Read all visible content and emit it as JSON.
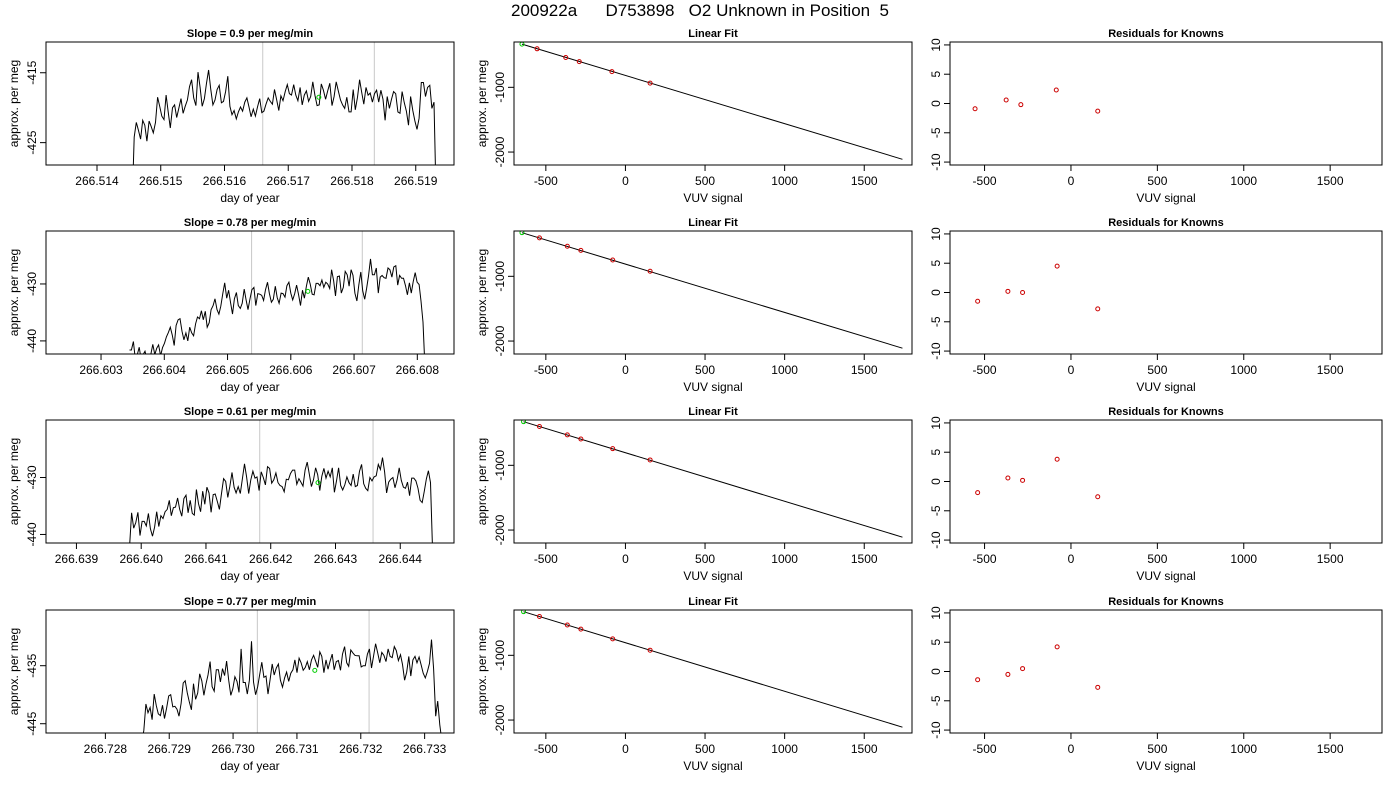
{
  "page_title": "200922a      D753898   O2 Unknown in Position  5",
  "chart_data": [
    {
      "type": "line",
      "panel": "timeseries",
      "title": "Slope =  0.9  per meg/min",
      "xlabel": "day of year",
      "ylabel": "approx. per meg",
      "xlim": [
        266.5132,
        266.5196
      ],
      "ylim": [
        -428.2,
        -410.6
      ],
      "xticks": [
        "266.514",
        "266.515",
        "266.516",
        "266.517",
        "266.518",
        "266.519"
      ],
      "yticks": [
        "-415",
        "-425"
      ],
      "vlines": [
        266.5166,
        266.51835
      ],
      "grid": false,
      "x_start": 266.51455,
      "x_end": 266.51932,
      "values": [
        -434.0,
        -424.2,
        -422.1,
        -423.2,
        -424.5,
        -421.8,
        -422.5,
        -424.8,
        -421.9,
        -422.7,
        -423.6,
        -422.1,
        -418.5,
        -419.8,
        -421.2,
        -421.7,
        -418.2,
        -420.6,
        -422.9,
        -420.0,
        -419.6,
        -421.4,
        -420.1,
        -418.7,
        -420.8,
        -419.8,
        -418.9,
        -417.0,
        -416.0,
        -418.6,
        -419.7,
        -414.9,
        -417.1,
        -419.8,
        -418.7,
        -416.5,
        -414.6,
        -417.3,
        -419.6,
        -418.9,
        -417.4,
        -416.8,
        -419.3,
        -419.1,
        -417.7,
        -415.5,
        -419.8,
        -421.0,
        -420.4,
        -421.6,
        -420.6,
        -419.9,
        -420.5,
        -419.2,
        -418.6,
        -419.9,
        -421.3,
        -420.2,
        -421.2,
        -419.9,
        -418.7,
        -420.7,
        -420.5,
        -419.5,
        -418.6,
        -419.1,
        -419.5,
        -417.4,
        -418.9,
        -420.4,
        -418.3,
        -419.0,
        -417.7,
        -416.7,
        -418.0,
        -418.2,
        -416.7,
        -418.2,
        -419.0,
        -417.1,
        -419.6,
        -418.2,
        -417.6,
        -419.1,
        -418.4,
        -416.3,
        -418.2,
        -419.7,
        -419.6,
        -416.6,
        -417.5,
        -418.8,
        -417.6,
        -416.5,
        -419.7,
        -418.4,
        -416.3,
        -417.6,
        -418.9,
        -419.6,
        -420.1,
        -418.5,
        -420.6,
        -420.6,
        -417.4,
        -420.3,
        -418.5,
        -416.0,
        -417.8,
        -419.5,
        -417.1,
        -418.2,
        -417.9,
        -419.2,
        -418.0,
        -417.5,
        -419.2,
        -417.5,
        -418.8,
        -421.8,
        -418.4,
        -420.1,
        -418.8,
        -417.7,
        -418.0,
        -420.6,
        -420.8,
        -417.7,
        -419.3,
        -420.5,
        -422.5,
        -418.4,
        -420.4,
        -421.9,
        -423.1,
        -421.5,
        -416.4,
        -416.4,
        -418.4,
        -417.1,
        -416.8,
        -420.1,
        -419.2,
        -433.0
      ],
      "marker": {
        "x": 266.51748,
        "y": -418.5,
        "color": "#00cc00"
      }
    },
    {
      "type": "scatter",
      "panel": "linear-fit",
      "title": "Linear Fit",
      "xlabel": "VUV signal",
      "ylabel": "approx. per meg",
      "xlim": [
        -700,
        1800
      ],
      "ylim": [
        -2200,
        -300
      ],
      "xticks": [
        "-500",
        "0",
        "500",
        "1000",
        "1500"
      ],
      "yticks": [
        "-1000",
        "-2000"
      ],
      "fit_line": {
        "x": [
          -650,
          1740
        ],
        "y": [
          -333,
          -2112
        ]
      },
      "knowns": {
        "x": [
          -555,
          -375,
          -290,
          -85,
          155
        ],
        "y": [
          -405,
          -540,
          -603,
          -757,
          -935
        ]
      },
      "unknown": {
        "x": [
          -650
        ],
        "y": [
          -333
        ]
      },
      "colors": {
        "knowns": "#cc0000",
        "unknown": "#00cc00"
      }
    },
    {
      "type": "scatter",
      "panel": "residuals",
      "title": "Residuals for Knowns",
      "xlabel": "VUV signal",
      "ylabel": "",
      "xlim": [
        -700,
        1800
      ],
      "ylim": [
        -10.5,
        10.5
      ],
      "xticks": [
        "-500",
        "0",
        "500",
        "1000",
        "1500"
      ],
      "yticks": [
        "-10",
        "-5",
        "0",
        "5",
        "10"
      ],
      "x": [
        -555,
        -375,
        -290,
        -85,
        155
      ],
      "y": [
        -0.9,
        0.6,
        -0.2,
        2.3,
        -1.3
      ]
    },
    {
      "type": "line",
      "panel": "timeseries",
      "title": "Slope =  0.78  per meg/min",
      "xlabel": "day of year",
      "ylabel": "approx. per meg",
      "xlim": [
        266.60213,
        266.60858
      ],
      "ylim": [
        -442.3,
        -420.7
      ],
      "xticks": [
        "266.603",
        "266.604",
        "266.605",
        "266.606",
        "266.607",
        "266.608"
      ],
      "yticks": [
        "-430",
        "-440"
      ],
      "vlines": [
        266.60538,
        266.60713
      ],
      "grid": false,
      "x_start": 266.60345,
      "x_end": 266.60812,
      "values": [
        -441.6,
        -441.6,
        -440.1,
        -443.2,
        -442.4,
        -441.1,
        -443.3,
        -442.4,
        -441.8,
        -443.2,
        -442.6,
        -442.3,
        -440.6,
        -442.4,
        -441.3,
        -440.7,
        -442.6,
        -441.2,
        -440.4,
        -439.3,
        -438.5,
        -437.6,
        -439.0,
        -440.8,
        -437.3,
        -436.3,
        -436.1,
        -438.3,
        -439.8,
        -438.6,
        -440.0,
        -437.6,
        -438.6,
        -439.1,
        -437.0,
        -435.8,
        -436.1,
        -434.7,
        -436.3,
        -434.8,
        -437.6,
        -436.8,
        -434.5,
        -433.8,
        -432.6,
        -434.5,
        -435.3,
        -433.9,
        -431.7,
        -429.8,
        -432.5,
        -431.1,
        -433.3,
        -435.3,
        -432.6,
        -431.5,
        -433.8,
        -434.3,
        -433.4,
        -430.9,
        -432.8,
        -434.5,
        -432.6,
        -431.0,
        -430.6,
        -433.8,
        -431.7,
        -431.8,
        -432.0,
        -432.9,
        -431.0,
        -429.7,
        -431.7,
        -433.2,
        -432.7,
        -430.4,
        -432.4,
        -433.4,
        -431.6,
        -431.7,
        -432.3,
        -430.3,
        -429.7,
        -431.6,
        -432.8,
        -431.7,
        -430.2,
        -431.9,
        -433.8,
        -431.1,
        -432.5,
        -430.4,
        -428.8,
        -430.0,
        -431.8,
        -431.9,
        -429.9,
        -429.9,
        -430.3,
        -429.3,
        -430.6,
        -429.7,
        -430.0,
        -430.8,
        -427.5,
        -429.4,
        -432.1,
        -428.7,
        -428.6,
        -431.6,
        -430.6,
        -427.8,
        -428.4,
        -430.4,
        -427.5,
        -428.5,
        -431.6,
        -433.0,
        -430.2,
        -427.9,
        -431.2,
        -432.7,
        -430.8,
        -428.6,
        -425.6,
        -428.4,
        -428.4,
        -427.2,
        -431.6,
        -428.8,
        -428.5,
        -428.9,
        -429.0,
        -427.2,
        -427.5,
        -428.8,
        -427.0,
        -426.8,
        -430.2,
        -428.5,
        -429.0,
        -429.0,
        -430.3,
        -431.9,
        -429.8,
        -431.6,
        -429.6,
        -428.0,
        -429.7,
        -430.1,
        -433.0,
        -436.7,
        -444.5
      ],
      "marker": {
        "x": 266.60627,
        "y": -431.3,
        "color": "#00cc00"
      }
    },
    {
      "type": "scatter",
      "panel": "linear-fit",
      "title": "Linear Fit",
      "xlabel": "VUV signal",
      "ylabel": "approx. per meg",
      "xlim": [
        -700,
        1800
      ],
      "ylim": [
        -2200,
        -300
      ],
      "xticks": [
        "-500",
        "0",
        "500",
        "1000",
        "1500"
      ],
      "yticks": [
        "-1000",
        "-2000"
      ],
      "fit_line": {
        "x": [
          -650,
          1740
        ],
        "y": [
          -326,
          -2110
        ]
      },
      "knowns": {
        "x": [
          -540,
          -365,
          -280,
          -80,
          155
        ],
        "y": [
          -406,
          -535,
          -599,
          -748,
          -922
        ]
      },
      "unknown": {
        "x": [
          -650
        ],
        "y": [
          -326
        ]
      },
      "colors": {
        "knowns": "#cc0000",
        "unknown": "#00cc00"
      }
    },
    {
      "type": "scatter",
      "panel": "residuals",
      "title": "Residuals for Knowns",
      "xlabel": "VUV signal",
      "ylabel": "",
      "xlim": [
        -700,
        1800
      ],
      "ylim": [
        -10.5,
        10.5
      ],
      "xticks": [
        "-500",
        "0",
        "500",
        "1000",
        "1500"
      ],
      "yticks": [
        "-10",
        "-5",
        "0",
        "5",
        "10"
      ],
      "x": [
        -540,
        -365,
        -280,
        -80,
        155
      ],
      "y": [
        -1.5,
        0.2,
        0.0,
        4.5,
        -2.8
      ]
    },
    {
      "type": "line",
      "panel": "timeseries",
      "title": "Slope =  0.61  per meg/min",
      "xlabel": "day of year",
      "ylabel": "approx. per meg",
      "xlim": [
        266.63853,
        266.64483
      ],
      "ylim": [
        -441.5,
        -419.9
      ],
      "xticks": [
        "266.639",
        "266.640",
        "266.641",
        "266.642",
        "266.643",
        "266.644"
      ],
      "yticks": [
        "-430",
        "-440"
      ],
      "vlines": [
        266.64183,
        266.64358
      ],
      "grid": false,
      "x_start": 266.63982,
      "x_end": 266.6445,
      "values": [
        -442.3,
        -436.2,
        -438.9,
        -437.9,
        -436.1,
        -440.2,
        -437.7,
        -437.7,
        -438.5,
        -436.3,
        -439.0,
        -440.3,
        -438.7,
        -436.0,
        -438.6,
        -436.7,
        -437.2,
        -436.0,
        -435.6,
        -434.0,
        -436.7,
        -435.3,
        -435.2,
        -433.6,
        -435.6,
        -436.8,
        -433.7,
        -433.1,
        -436.2,
        -434.0,
        -436.3,
        -436.6,
        -432.1,
        -434.6,
        -436.0,
        -432.4,
        -434.7,
        -431.7,
        -432.7,
        -436.1,
        -433.0,
        -432.9,
        -434.2,
        -435.6,
        -432.8,
        -430.2,
        -430.7,
        -433.5,
        -431.5,
        -429.1,
        -431.7,
        -432.7,
        -431.6,
        -432.8,
        -430.2,
        -427.6,
        -429.9,
        -432.8,
        -430.4,
        -428.9,
        -430.1,
        -429.9,
        -432.3,
        -429.0,
        -430.0,
        -431.3,
        -428.1,
        -428.4,
        -431.0,
        -430.4,
        -429.2,
        -430.9,
        -431.4,
        -431.6,
        -432.5,
        -430.3,
        -430.4,
        -429.3,
        -428.7,
        -428.7,
        -431.2,
        -430.2,
        -430.8,
        -431.5,
        -428.7,
        -427.3,
        -429.4,
        -431.6,
        -430.4,
        -428.3,
        -429.5,
        -432.3,
        -429.8,
        -428.4,
        -430.1,
        -428.9,
        -429.9,
        -428.3,
        -432.6,
        -430.6,
        -428.3,
        -431.4,
        -432.2,
        -431.3,
        -429.9,
        -430.9,
        -431.4,
        -429.4,
        -431.6,
        -431.4,
        -428.9,
        -427.7,
        -431.1,
        -431.9,
        -432.3,
        -430.0,
        -430.6,
        -429.9,
        -429.7,
        -427.7,
        -428.6,
        -426.5,
        -429.0,
        -432.7,
        -430.8,
        -430.3,
        -430.0,
        -431.8,
        -430.4,
        -428.3,
        -430.5,
        -431.7,
        -431.9,
        -430.8,
        -433.2,
        -430.1,
        -430.1,
        -430.6,
        -431.9,
        -434.0,
        -434.4,
        -432.4,
        -430.2,
        -428.8,
        -430.9,
        -443.0
      ],
      "marker": {
        "x": 266.64273,
        "y": -430.9,
        "color": "#00cc00"
      }
    },
    {
      "type": "scatter",
      "panel": "linear-fit",
      "title": "Linear Fit",
      "xlabel": "VUV signal",
      "ylabel": "approx. per meg",
      "xlim": [
        -700,
        1800
      ],
      "ylim": [
        -2200,
        -300
      ],
      "xticks": [
        "-500",
        "0",
        "500",
        "1000",
        "1500"
      ],
      "yticks": [
        "-1000",
        "-2000"
      ],
      "fit_line": {
        "x": [
          -640,
          1740
        ],
        "y": [
          -326,
          -2110
        ]
      },
      "knowns": {
        "x": [
          -540,
          -365,
          -280,
          -80,
          155
        ],
        "y": [
          -401,
          -530,
          -593,
          -743,
          -917
        ]
      },
      "unknown": {
        "x": [
          -640
        ],
        "y": [
          -326
        ]
      },
      "colors": {
        "knowns": "#cc0000",
        "unknown": "#00cc00"
      }
    },
    {
      "type": "scatter",
      "panel": "residuals",
      "title": "Residuals for Knowns",
      "xlabel": "VUV signal",
      "ylabel": "",
      "xlim": [
        -700,
        1800
      ],
      "ylim": [
        -10.5,
        10.5
      ],
      "xticks": [
        "-500",
        "0",
        "500",
        "1000",
        "1500"
      ],
      "yticks": [
        "-10",
        "-5",
        "0",
        "5",
        "10"
      ],
      "x": [
        -540,
        -365,
        -280,
        -80,
        155
      ],
      "y": [
        -1.9,
        0.6,
        0.2,
        3.8,
        -2.6
      ]
    },
    {
      "type": "line",
      "panel": "timeseries",
      "title": "Slope =  0.77  per meg/min",
      "xlabel": "day of year",
      "ylabel": "approx. per meg",
      "xlim": [
        266.72707,
        266.73346
      ],
      "ylim": [
        -446.6,
        -425.4
      ],
      "xticks": [
        "266.728",
        "266.729",
        "266.730",
        "266.731",
        "266.732",
        "266.733"
      ],
      "yticks": [
        "-435",
        "-445"
      ],
      "vlines": [
        266.73038,
        266.73213
      ],
      "grid": false,
      "x_start": 266.72857,
      "x_end": 266.73327,
      "values": [
        -448.0,
        -446.2,
        -441.6,
        -443.1,
        -442.2,
        -444.3,
        -439.9,
        -441.9,
        -443.3,
        -443.6,
        -441.8,
        -444.1,
        -442.3,
        -440.2,
        -440.0,
        -442.1,
        -442.0,
        -442.5,
        -443.7,
        -441.5,
        -438.0,
        -437.6,
        -439.7,
        -441.3,
        -442.6,
        -438.1,
        -440.8,
        -439.7,
        -436.4,
        -437.6,
        -440.1,
        -438.2,
        -436.6,
        -434.3,
        -438.6,
        -439.4,
        -435.7,
        -435.7,
        -437.8,
        -435.5,
        -436.7,
        -434.2,
        -437.5,
        -440.1,
        -439.0,
        -436.9,
        -437.7,
        -439.6,
        -432.1,
        -437.9,
        -437.9,
        -439.9,
        -437.5,
        -430.8,
        -437.8,
        -440.0,
        -438.6,
        -436.5,
        -434.4,
        -437.0,
        -436.8,
        -439.9,
        -437.4,
        -434.7,
        -436.6,
        -435.4,
        -434.7,
        -437.5,
        -438.7,
        -437.1,
        -436.1,
        -437.7,
        -436.3,
        -435.7,
        -434.0,
        -436.2,
        -433.7,
        -434.5,
        -435.8,
        -435.3,
        -434.3,
        -435.7,
        -434.0,
        -433.2,
        -434.2,
        -435.3,
        -432.6,
        -433.4,
        -436.2,
        -434.0,
        -435.6,
        -434.2,
        -433.0,
        -435.7,
        -434.3,
        -434.1,
        -435.8,
        -433.0,
        -431.7,
        -434.5,
        -435.1,
        -432.3,
        -432.8,
        -433.2,
        -433.3,
        -433.3,
        -435.2,
        -435.0,
        -435.0,
        -433.0,
        -432.1,
        -435.4,
        -433.3,
        -431.2,
        -432.8,
        -434.5,
        -432.7,
        -433.2,
        -434.3,
        -432.1,
        -433.4,
        -433.6,
        -431.7,
        -432.4,
        -434.1,
        -433.1,
        -434.8,
        -437.5,
        -436.1,
        -433.4,
        -436.8,
        -434.0,
        -433.4,
        -434.5,
        -433.5,
        -434.9,
        -436.3,
        -437.1,
        -436.0,
        -434.6,
        -430.5,
        -435.5,
        -443.7,
        -441.1,
        -445.2,
        -448.0
      ],
      "marker": {
        "x": 266.73128,
        "y": -435.8,
        "color": "#00cc00"
      }
    },
    {
      "type": "scatter",
      "panel": "linear-fit",
      "title": "Linear Fit",
      "xlabel": "VUV signal",
      "ylabel": "approx. per meg",
      "xlim": [
        -700,
        1800
      ],
      "ylim": [
        -2200,
        -300
      ],
      "xticks": [
        "-500",
        "0",
        "500",
        "1000",
        "1500"
      ],
      "yticks": [
        "-1000",
        "-2000"
      ],
      "fit_line": {
        "x": [
          -640,
          1740
        ],
        "y": [
          -326,
          -2110
        ]
      },
      "knowns": {
        "x": [
          -540,
          -365,
          -280,
          -80,
          155
        ],
        "y": [
          -401,
          -532,
          -596,
          -746,
          -921
        ]
      },
      "unknown": {
        "x": [
          -640
        ],
        "y": [
          -326
        ]
      },
      "colors": {
        "knowns": "#cc0000",
        "unknown": "#00cc00"
      }
    },
    {
      "type": "scatter",
      "panel": "residuals",
      "title": "Residuals for Knowns",
      "xlabel": "VUV signal",
      "ylabel": "",
      "xlim": [
        -700,
        1800
      ],
      "ylim": [
        -10.5,
        10.5
      ],
      "xticks": [
        "-500",
        "0",
        "500",
        "1000",
        "1500"
      ],
      "yticks": [
        "-10",
        "-5",
        "0",
        "5",
        "10"
      ],
      "x": [
        -540,
        -365,
        -280,
        -80,
        155
      ],
      "y": [
        -1.4,
        -0.5,
        0.5,
        4.2,
        -2.7
      ]
    }
  ]
}
